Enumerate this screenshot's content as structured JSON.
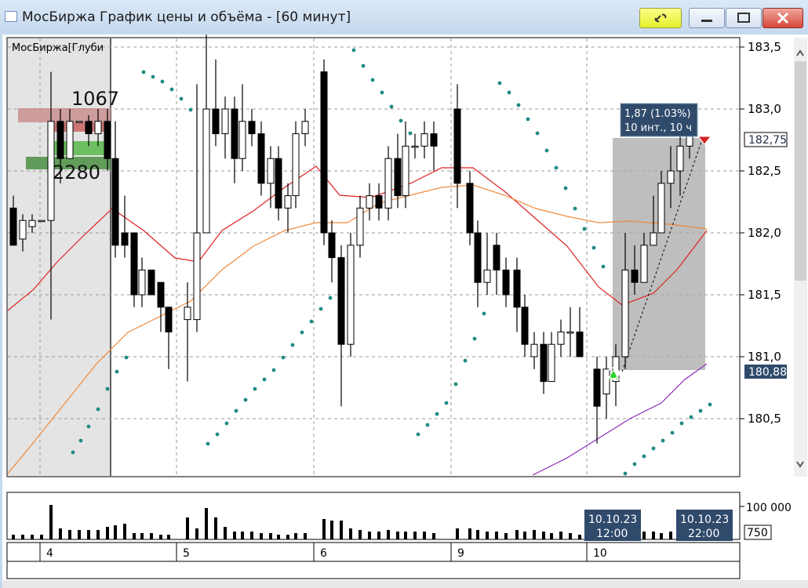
{
  "window": {
    "title": "МосБиржа График цены и объёма - [60 минут]"
  },
  "chart": {
    "overlay_label": "МосБиржа[Глуби",
    "bid_label": "1067",
    "ask_label": "2280",
    "measure_line1": "1,87 (1.03%)",
    "measure_line2": "10 инт., 10 ч",
    "current_price": "182,75",
    "entry_price": "180,88",
    "price_ticks": [
      "183,5",
      "183,0",
      "182,5",
      "182,0",
      "181,5",
      "181,0",
      "180,5"
    ],
    "volume_ticks": [
      "100 000",
      "750"
    ],
    "date_labels": [
      "4",
      "5",
      "6",
      "9",
      "10"
    ],
    "crosshair_tags": [
      {
        "date": "10.10.23",
        "time": "12:00"
      },
      {
        "date": "10.10.23",
        "time": "22:00"
      }
    ],
    "colors": {
      "ma_fast": "#e02020",
      "ma_slow": "#f08a3c",
      "parabolic_sar": "#1f8a85",
      "channel": "#8e2bbd",
      "measure_box": "#a8a8a8",
      "tag_bg": "#2f4a6b"
    }
  }
}
